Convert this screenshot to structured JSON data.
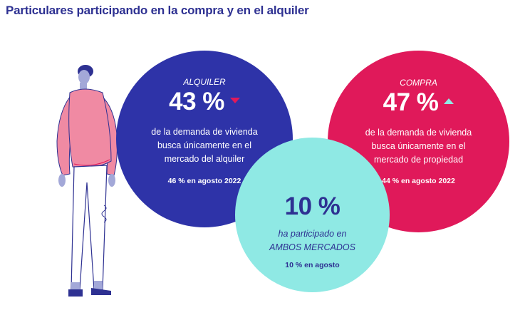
{
  "title": "Particulares participando en la compra y en el alquiler",
  "alquiler": {
    "label": "ALQUILER",
    "value": "43 %",
    "trend": "down",
    "desc_line1": "de la demanda de vivienda",
    "desc_line2": "busca únicamente en el",
    "desc_line3": "mercado del alquiler",
    "previous": "46 % en agosto 2022"
  },
  "compra": {
    "label": "COMPRA",
    "value": "47 %",
    "trend": "up",
    "desc_line1": "de la demanda de vivienda",
    "desc_line2": "busca únicamente en el",
    "desc_line3": "mercado de propiedad",
    "previous": "44 % en agosto 2022"
  },
  "ambos": {
    "value": "10 %",
    "desc_line1": "ha participado en",
    "desc_line2": "AMBOS MERCADOS",
    "previous": "10 % en agosto"
  },
  "colors": {
    "alquiler": "#2e33a8",
    "compra": "#e0195a",
    "ambos": "#8fe9e4",
    "title": "#2e3192"
  },
  "icons": {
    "trend_down": "down-triangle-icon",
    "trend_up": "up-triangle-icon",
    "figure": "person-illustration"
  }
}
